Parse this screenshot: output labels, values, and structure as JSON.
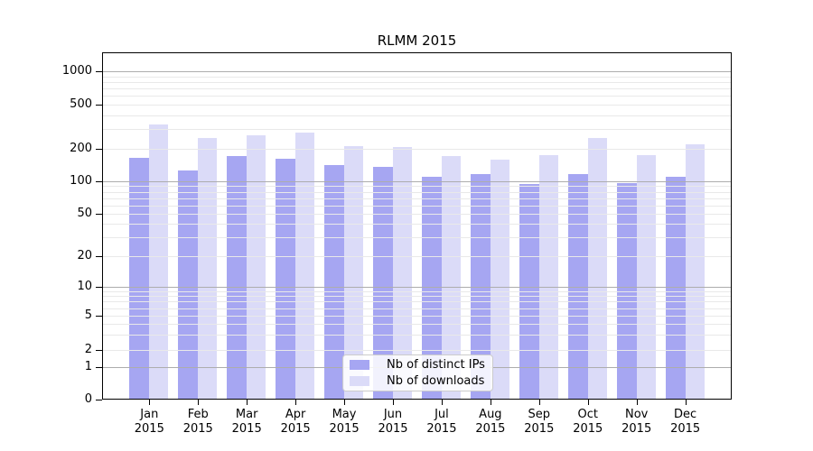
{
  "chart_data": {
    "type": "bar",
    "title": "RLMM 2015",
    "categories": [
      "Jan 2015",
      "Feb 2015",
      "Mar 2015",
      "Apr 2015",
      "May 2015",
      "Jun 2015",
      "Jul 2015",
      "Aug 2015",
      "Sep 2015",
      "Oct 2015",
      "Nov 2015",
      "Dec 2015"
    ],
    "series": [
      {
        "name": "Nb of distinct IPs",
        "color": "#a6a6f2",
        "values": [
          165,
          126,
          172,
          163,
          142,
          136,
          111,
          116,
          95,
          117,
          96,
          110
        ]
      },
      {
        "name": "Nb of downloads",
        "color": "#dbdbf8",
        "values": [
          330,
          252,
          265,
          282,
          213,
          206,
          172,
          160,
          174,
          251,
          174,
          220
        ]
      }
    ],
    "yscale": "log-like-with-zero",
    "yticks": [
      0,
      1,
      2,
      5,
      10,
      20,
      50,
      100,
      200,
      500,
      1000
    ],
    "ylim": [
      0,
      1500
    ],
    "xlabel": "",
    "ylabel": "",
    "grid": true,
    "legend_position": "lower center",
    "colors": {
      "major_gridline": "#adadad",
      "minor_gridline": "#e9e9e9",
      "axis": "#000000",
      "legend_border": "#cccccc"
    }
  }
}
